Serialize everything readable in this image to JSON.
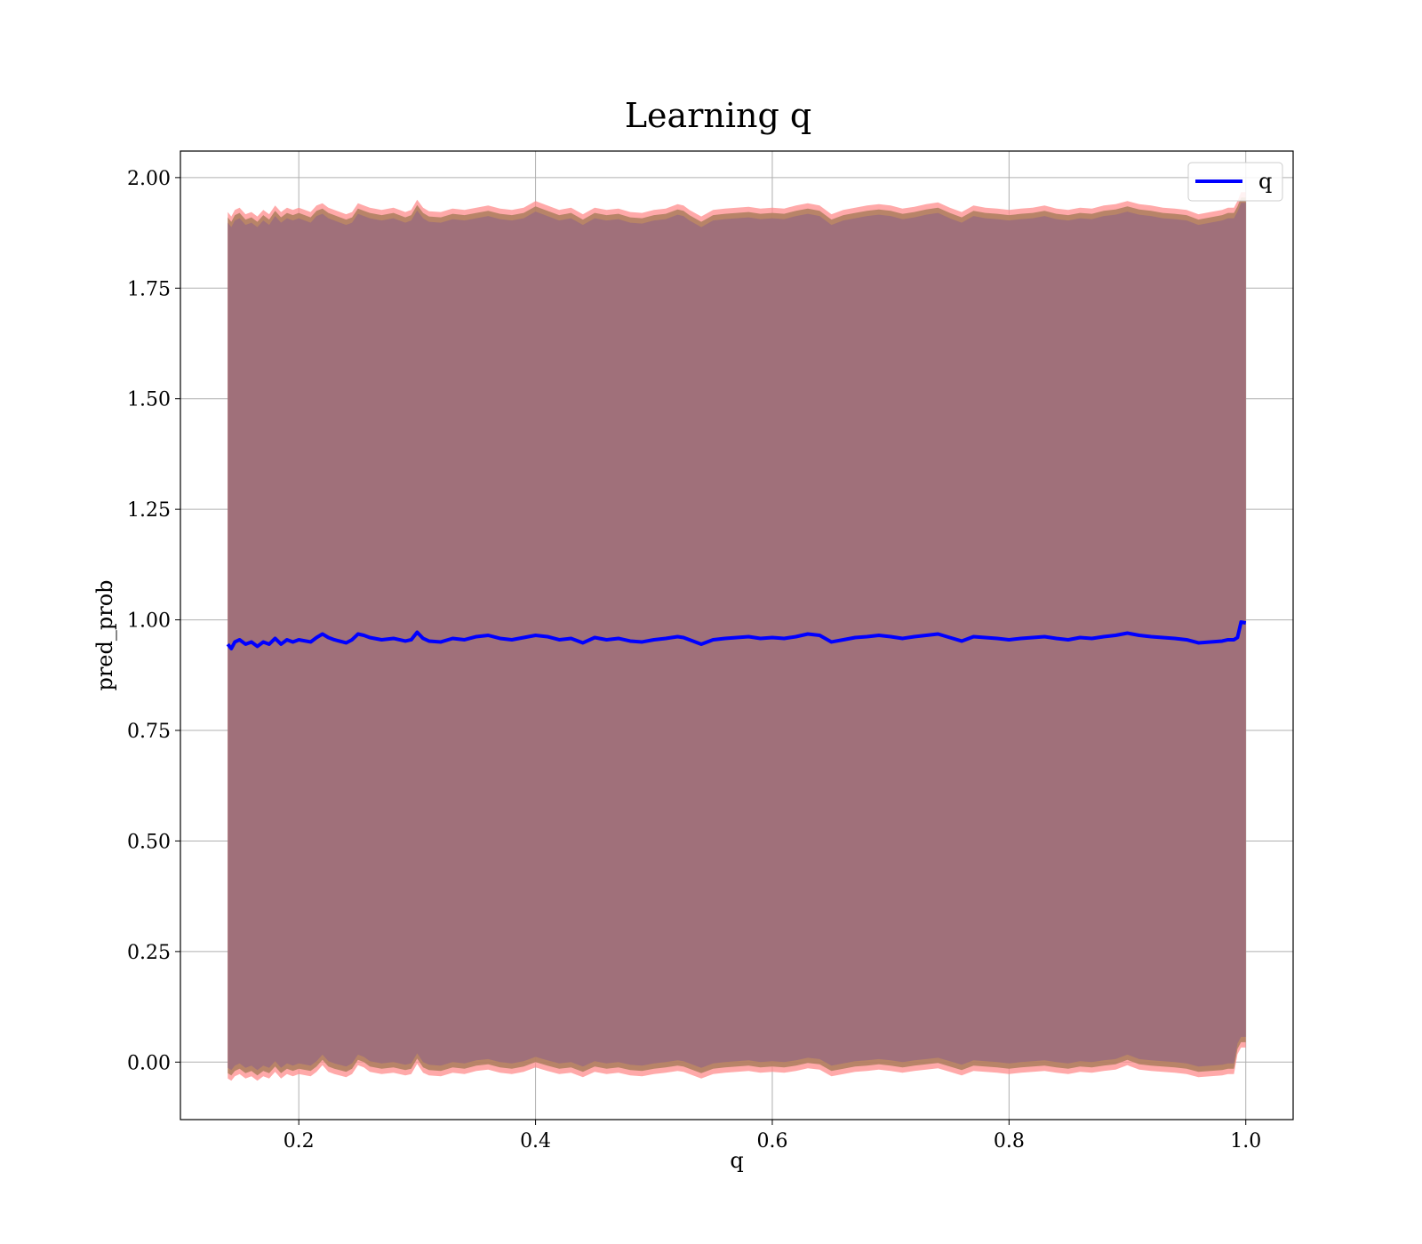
{
  "chart_data": {
    "type": "line",
    "title": "Learning q",
    "xlabel": "q",
    "ylabel": "pred_prob",
    "xlim": [
      0.1,
      1.04
    ],
    "ylim": [
      -0.13,
      2.06
    ],
    "grid": true,
    "legend_position": "top-right",
    "xticks": [
      0.2,
      0.4,
      0.6,
      0.8,
      1.0
    ],
    "xtick_labels": [
      "0.2",
      "0.4",
      "0.6",
      "0.8",
      "1.0"
    ],
    "yticks": [
      0.0,
      0.25,
      0.5,
      0.75,
      1.0,
      1.25,
      1.5,
      1.75,
      2.0
    ],
    "ytick_labels": [
      "0.00",
      "0.25",
      "0.50",
      "0.75",
      "1.00",
      "1.25",
      "1.50",
      "1.75",
      "2.00"
    ],
    "colors": {
      "line": "#0000ff",
      "band": "#a0707a",
      "band_edge_outer": "#ff8c8c",
      "band_edge_inner": "#b08060",
      "grid": "#b0b0b0"
    },
    "series": [
      {
        "name": "q",
        "x": [
          0.14,
          0.143,
          0.146,
          0.15,
          0.155,
          0.16,
          0.165,
          0.17,
          0.175,
          0.18,
          0.185,
          0.19,
          0.195,
          0.2,
          0.21,
          0.215,
          0.22,
          0.225,
          0.23,
          0.24,
          0.245,
          0.25,
          0.255,
          0.26,
          0.27,
          0.28,
          0.29,
          0.295,
          0.3,
          0.305,
          0.31,
          0.32,
          0.33,
          0.34,
          0.35,
          0.36,
          0.37,
          0.38,
          0.39,
          0.4,
          0.41,
          0.42,
          0.43,
          0.44,
          0.45,
          0.46,
          0.47,
          0.48,
          0.49,
          0.5,
          0.51,
          0.52,
          0.525,
          0.53,
          0.54,
          0.55,
          0.56,
          0.57,
          0.58,
          0.59,
          0.6,
          0.61,
          0.62,
          0.63,
          0.64,
          0.65,
          0.66,
          0.67,
          0.68,
          0.69,
          0.7,
          0.71,
          0.72,
          0.73,
          0.74,
          0.75,
          0.76,
          0.77,
          0.78,
          0.79,
          0.8,
          0.81,
          0.82,
          0.83,
          0.84,
          0.85,
          0.86,
          0.87,
          0.88,
          0.89,
          0.9,
          0.91,
          0.92,
          0.93,
          0.94,
          0.95,
          0.96,
          0.97,
          0.98,
          0.985,
          0.99,
          0.993,
          0.996,
          1.0
        ],
        "y": [
          0.945,
          0.935,
          0.95,
          0.955,
          0.945,
          0.95,
          0.94,
          0.95,
          0.945,
          0.958,
          0.945,
          0.955,
          0.95,
          0.955,
          0.95,
          0.96,
          0.968,
          0.96,
          0.955,
          0.948,
          0.955,
          0.968,
          0.965,
          0.96,
          0.955,
          0.958,
          0.952,
          0.955,
          0.972,
          0.958,
          0.952,
          0.95,
          0.958,
          0.955,
          0.962,
          0.965,
          0.958,
          0.955,
          0.96,
          0.965,
          0.962,
          0.955,
          0.958,
          0.948,
          0.96,
          0.955,
          0.958,
          0.952,
          0.95,
          0.955,
          0.958,
          0.962,
          0.96,
          0.955,
          0.945,
          0.955,
          0.958,
          0.96,
          0.962,
          0.958,
          0.96,
          0.958,
          0.962,
          0.968,
          0.965,
          0.95,
          0.955,
          0.96,
          0.962,
          0.965,
          0.962,
          0.958,
          0.962,
          0.965,
          0.968,
          0.96,
          0.952,
          0.962,
          0.96,
          0.958,
          0.955,
          0.958,
          0.96,
          0.962,
          0.958,
          0.955,
          0.96,
          0.958,
          0.962,
          0.965,
          0.97,
          0.965,
          0.962,
          0.96,
          0.958,
          0.955,
          0.948,
          0.95,
          0.952,
          0.955,
          0.955,
          0.96,
          0.995,
          0.993
        ],
        "band_upper": [
          1.91,
          1.9,
          1.915,
          1.92,
          1.905,
          1.91,
          1.9,
          1.915,
          1.905,
          1.925,
          1.91,
          1.92,
          1.915,
          1.92,
          1.91,
          1.925,
          1.93,
          1.92,
          1.915,
          1.905,
          1.91,
          1.93,
          1.925,
          1.92,
          1.915,
          1.92,
          1.91,
          1.915,
          1.938,
          1.92,
          1.912,
          1.91,
          1.918,
          1.915,
          1.92,
          1.925,
          1.918,
          1.915,
          1.92,
          1.935,
          1.925,
          1.915,
          1.92,
          1.905,
          1.92,
          1.915,
          1.918,
          1.91,
          1.908,
          1.915,
          1.918,
          1.928,
          1.925,
          1.915,
          1.9,
          1.915,
          1.918,
          1.92,
          1.922,
          1.918,
          1.92,
          1.918,
          1.925,
          1.93,
          1.925,
          1.905,
          1.915,
          1.92,
          1.925,
          1.928,
          1.925,
          1.918,
          1.922,
          1.928,
          1.932,
          1.92,
          1.91,
          1.925,
          1.92,
          1.918,
          1.915,
          1.918,
          1.92,
          1.925,
          1.918,
          1.915,
          1.92,
          1.918,
          1.925,
          1.928,
          1.935,
          1.928,
          1.925,
          1.92,
          1.918,
          1.915,
          1.905,
          1.91,
          1.915,
          1.92,
          1.92,
          1.935,
          1.955,
          1.955
        ],
        "band_lower": [
          -0.025,
          -0.03,
          -0.02,
          -0.015,
          -0.025,
          -0.02,
          -0.03,
          -0.02,
          -0.025,
          -0.01,
          -0.025,
          -0.015,
          -0.02,
          -0.015,
          -0.02,
          -0.01,
          0.005,
          -0.01,
          -0.015,
          -0.022,
          -0.015,
          0.005,
          0.0,
          -0.01,
          -0.015,
          -0.012,
          -0.018,
          -0.015,
          0.008,
          -0.012,
          -0.018,
          -0.02,
          -0.012,
          -0.015,
          -0.008,
          -0.005,
          -0.012,
          -0.015,
          -0.01,
          0.0,
          -0.008,
          -0.015,
          -0.012,
          -0.022,
          -0.01,
          -0.015,
          -0.012,
          -0.018,
          -0.02,
          -0.015,
          -0.012,
          -0.008,
          -0.01,
          -0.015,
          -0.025,
          -0.015,
          -0.012,
          -0.01,
          -0.008,
          -0.012,
          -0.01,
          -0.012,
          -0.008,
          -0.002,
          -0.005,
          -0.02,
          -0.015,
          -0.01,
          -0.008,
          -0.005,
          -0.008,
          -0.012,
          -0.008,
          -0.005,
          -0.002,
          -0.01,
          -0.018,
          -0.008,
          -0.01,
          -0.012,
          -0.015,
          -0.012,
          -0.01,
          -0.008,
          -0.012,
          -0.015,
          -0.01,
          -0.012,
          -0.008,
          -0.005,
          0.005,
          -0.005,
          -0.008,
          -0.01,
          -0.012,
          -0.015,
          -0.022,
          -0.02,
          -0.018,
          -0.015,
          -0.015,
          0.03,
          0.045,
          0.045
        ]
      }
    ],
    "legend": [
      {
        "label": "q",
        "color": "#0000ff"
      }
    ]
  }
}
